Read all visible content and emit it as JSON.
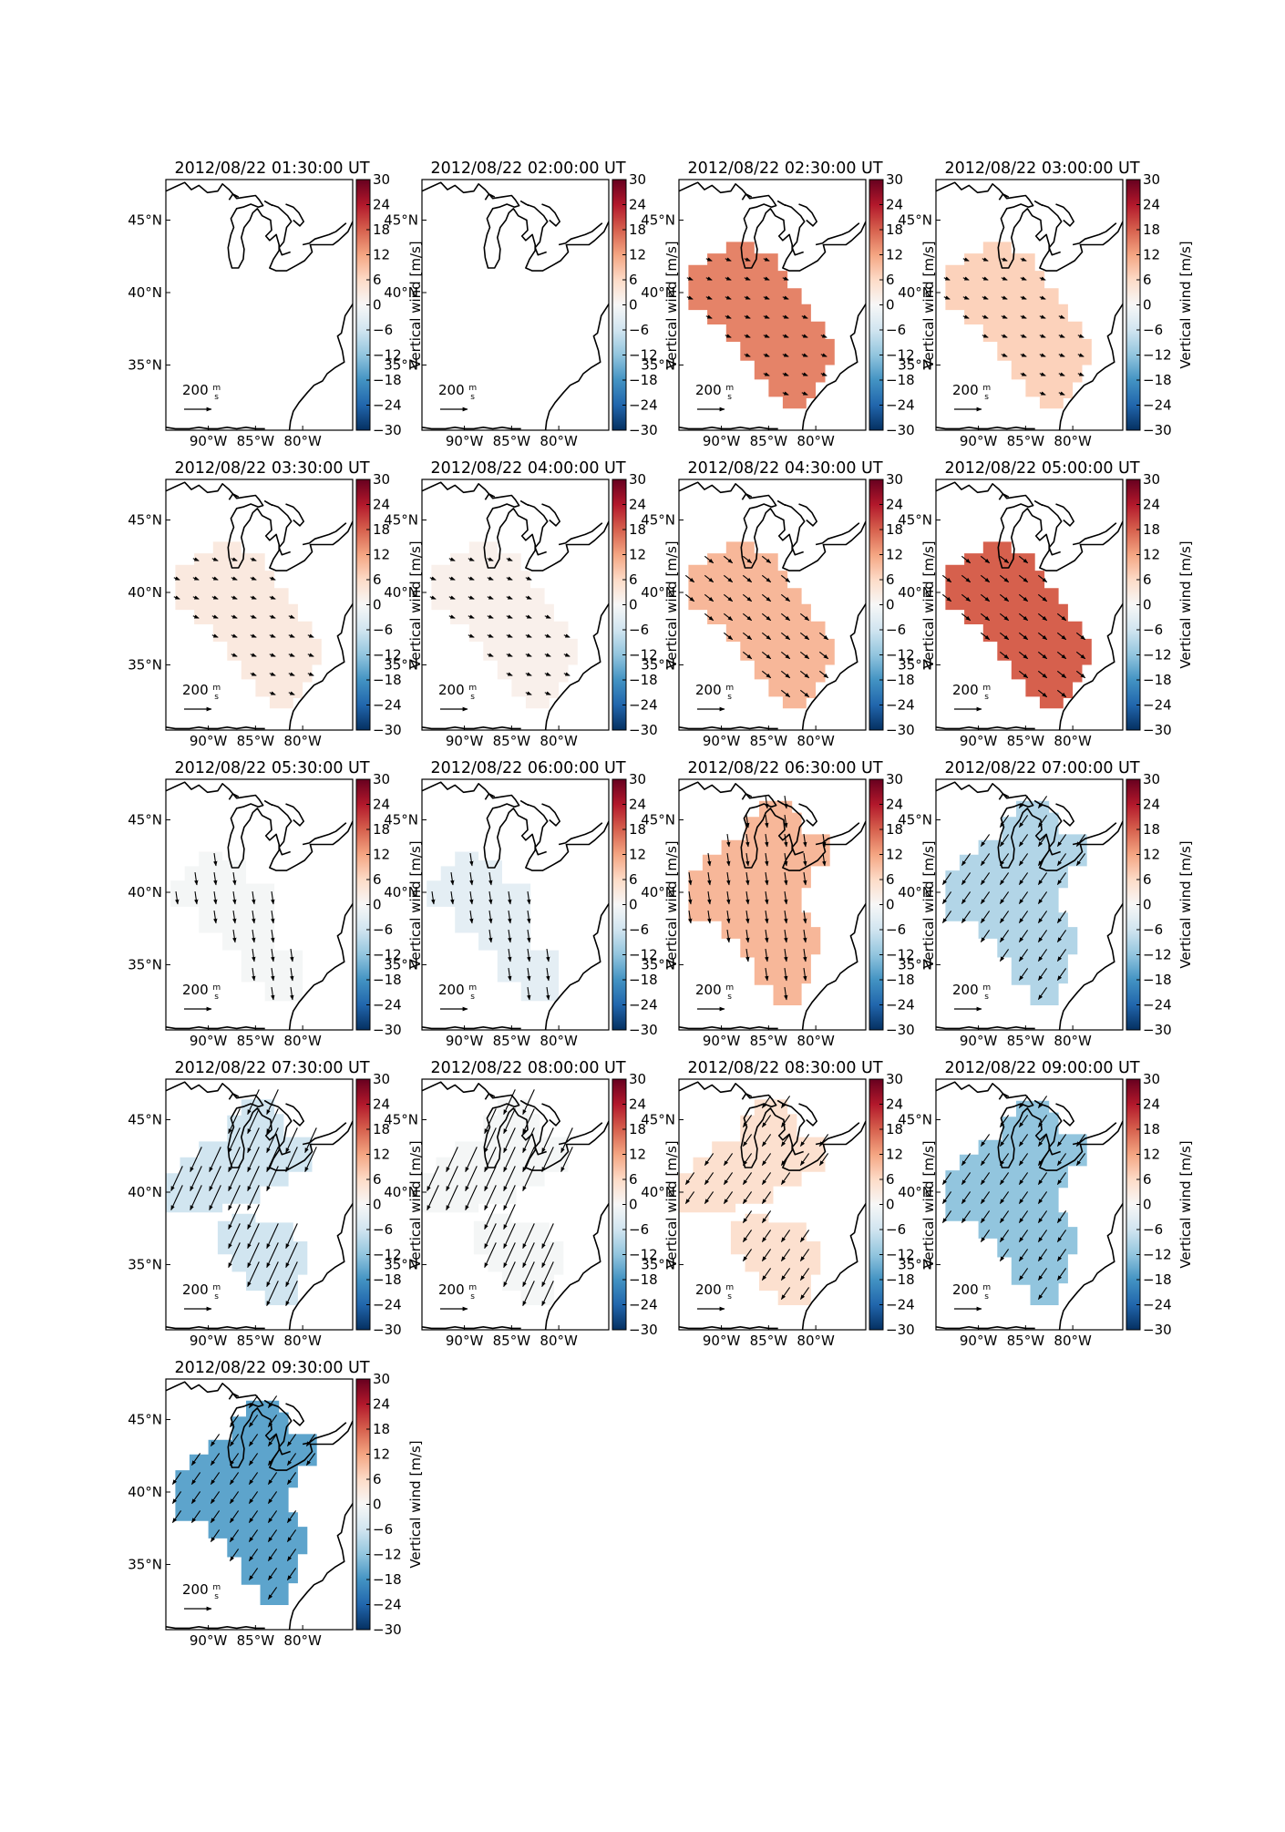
{
  "figure": {
    "colorbar_label": "Vertical wind [m/s]",
    "colorbar_ticks": [
      "30",
      "24",
      "18",
      "12",
      "6",
      "0",
      "−6",
      "−12",
      "−18",
      "−24",
      "−30"
    ],
    "colorbar_range": [
      -30,
      30
    ],
    "colormap": [
      "#053061",
      "#2166ac",
      "#4393c3",
      "#92c5de",
      "#d1e5f0",
      "#f7f7f7",
      "#fddbc7",
      "#f4a582",
      "#d6604d",
      "#b2182b",
      "#67001f"
    ],
    "lon_ticks": [
      "90°W",
      "85°W",
      "80°W"
    ],
    "lat_ticks": [
      "45°N",
      "40°N",
      "35°N"
    ],
    "scale_label_value": "200",
    "scale_label_num": "m",
    "scale_label_den": "s"
  },
  "panels": [
    {
      "title": "2012/08/22 01:30:00 UT",
      "value": null,
      "shape": "none",
      "arrows": "none"
    },
    {
      "title": "2012/08/22 02:00:00 UT",
      "value": null,
      "shape": "none",
      "arrows": "none"
    },
    {
      "title": "2012/08/22 02:30:00 UT",
      "value": 15,
      "shape": "A",
      "arrows": "short-se"
    },
    {
      "title": "2012/08/22 03:00:00 UT",
      "value": 7,
      "shape": "A",
      "arrows": "short-se"
    },
    {
      "title": "2012/08/22 03:30:00 UT",
      "value": 3,
      "shape": "A",
      "arrows": "short-se"
    },
    {
      "title": "2012/08/22 04:00:00 UT",
      "value": 1.5,
      "shape": "A",
      "arrows": "short-se"
    },
    {
      "title": "2012/08/22 04:30:00 UT",
      "value": 10,
      "shape": "A",
      "arrows": "se"
    },
    {
      "title": "2012/08/22 05:00:00 UT",
      "value": 18,
      "shape": "A",
      "arrows": "se"
    },
    {
      "title": "2012/08/22 05:30:00 UT",
      "value": -0.5,
      "shape": "B",
      "arrows": "s"
    },
    {
      "title": "2012/08/22 06:00:00 UT",
      "value": -3,
      "shape": "B",
      "arrows": "s"
    },
    {
      "title": "2012/08/22 06:30:00 UT",
      "value": 10,
      "shape": "C",
      "arrows": "s"
    },
    {
      "title": "2012/08/22 07:00:00 UT",
      "value": -9,
      "shape": "C",
      "arrows": "sw"
    },
    {
      "title": "2012/08/22 07:30:00 UT",
      "value": -6,
      "shape": "D",
      "arrows": "long-sw"
    },
    {
      "title": "2012/08/22 08:00:00 UT",
      "value": -0.5,
      "shape": "D",
      "arrows": "long-sw"
    },
    {
      "title": "2012/08/22 08:30:00 UT",
      "value": 5,
      "shape": "D",
      "arrows": "sw"
    },
    {
      "title": "2012/08/22 09:00:00 UT",
      "value": -12,
      "shape": "C",
      "arrows": "sw"
    },
    {
      "title": "2012/08/22 09:30:00 UT",
      "value": -16,
      "shape": "C",
      "arrows": "sw"
    }
  ]
}
